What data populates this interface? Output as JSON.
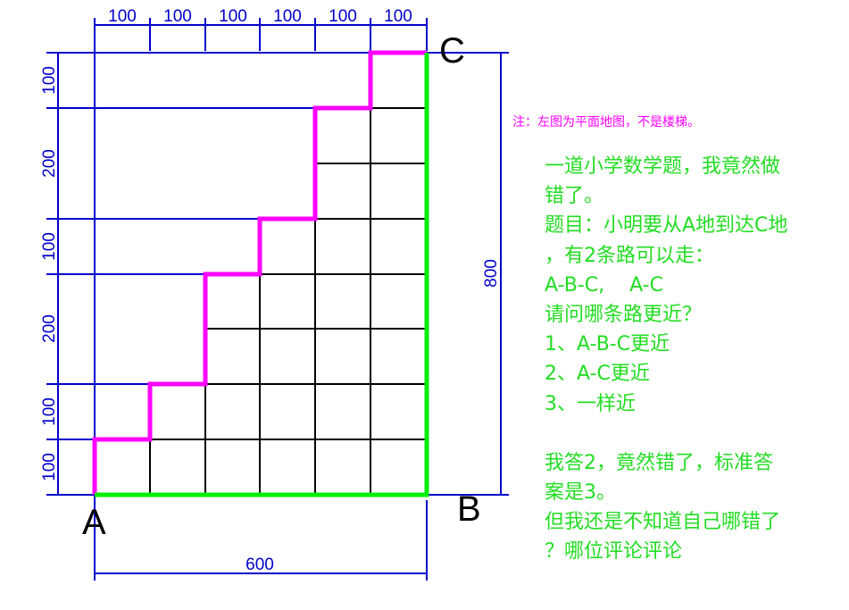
{
  "diagram": {
    "points": {
      "a": "A",
      "b": "B",
      "c": "C"
    },
    "top_dimensions": [
      "100",
      "100",
      "100",
      "100",
      "100",
      "100"
    ],
    "left_dimensions": [
      "100",
      "200",
      "100",
      "200",
      "100",
      "100"
    ],
    "right_dimension": "800",
    "bottom_dimension": "600",
    "colors": {
      "dimension": "#0000cc",
      "grid": "#000000",
      "path_abc": "#00ee00",
      "path_ac": "#ff00ff"
    }
  },
  "note": "注：左图为平面地图，不是楼梯。",
  "text_lines": [
    "一道小学数学题，我竟然做",
    "错了。",
    "题目：小明要从A地到达C地",
    "，有2条路可以走：",
    "A-B-C,    A-C",
    "请问哪条路更近？",
    "1、A-B-C更近",
    "2、A-C更近",
    "3、一样近",
    "",
    "我答2，竟然错了，标准答",
    "案是3。",
    "但我还是不知道自己哪错了",
    "？哪位评论评论"
  ]
}
